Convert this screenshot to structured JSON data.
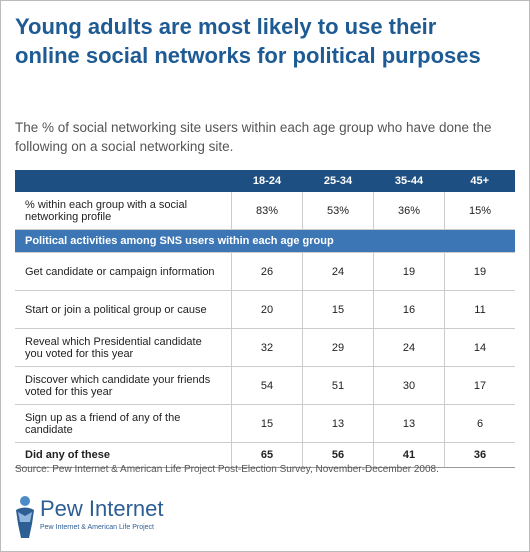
{
  "title": "Young adults are most likely to use their online social networks for political purposes",
  "subtitle": "The % of social networking site users within each age group who have done the following on a social networking site.",
  "table": {
    "columns": [
      "18-24",
      "25-34",
      "35-44",
      "45+"
    ],
    "rows": [
      {
        "label": "% within each group with a social networking profile",
        "values": [
          "83%",
          "53%",
          "36%",
          "15%"
        ]
      },
      {
        "section": "Political activities among SNS users within each age group"
      },
      {
        "label": "Get candidate or campaign information",
        "values": [
          26,
          24,
          19,
          19
        ]
      },
      {
        "label": "Start or join a political group or cause",
        "values": [
          20,
          15,
          16,
          11
        ]
      },
      {
        "label": "Reveal which Presidential candidate you voted for this year",
        "values": [
          32,
          29,
          24,
          14
        ]
      },
      {
        "label": "Discover which candidate your friends voted for this year",
        "values": [
          54,
          51,
          30,
          17
        ]
      },
      {
        "label": "Sign up as a friend of any of the candidate",
        "values": [
          15,
          13,
          13,
          6
        ]
      },
      {
        "label": "Did any of these",
        "values": [
          65,
          56,
          41,
          36
        ],
        "bold": true
      }
    ]
  },
  "source": "Source: Pew Internet & American Life Project Post-Election Survey, November-December 2008.",
  "logo": {
    "name": "Pew Internet",
    "tagline": "Pew Internet & American Life Project"
  }
}
